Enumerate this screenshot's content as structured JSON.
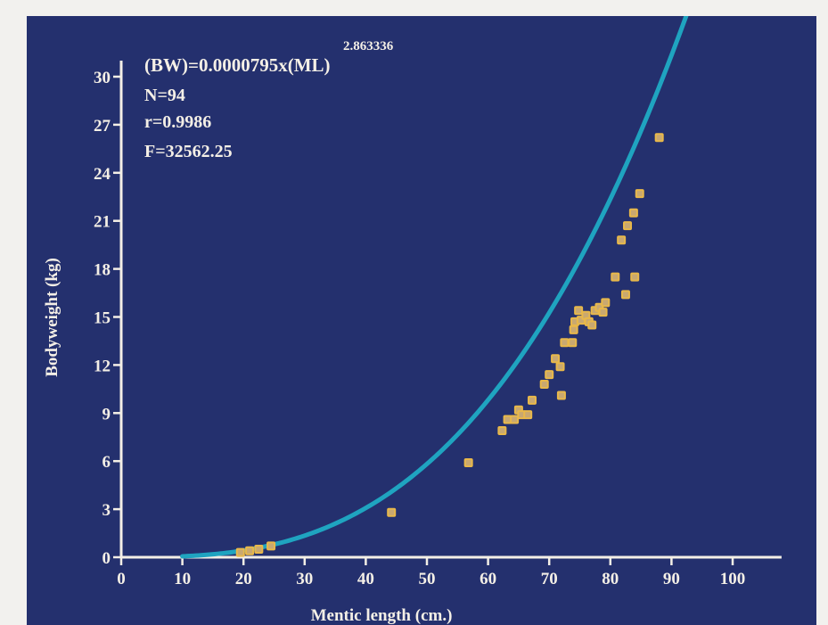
{
  "colors": {
    "page_background": "#f2f1ee",
    "plot_background": "#24306e",
    "axis": "#f4efe6",
    "fit_curve": "#1fa4c0",
    "points_stroke": "#e8b84a",
    "points_fill": "#c9a870"
  },
  "annotations": {
    "equation": "(BW)=0.0000795x(ML)",
    "exponent": "2.863336",
    "n": "N=94",
    "r": "r=0.9986",
    "f": "F=32562.25"
  },
  "chart_data": {
    "type": "scatter",
    "xlabel": "Mentic length (cm.)",
    "ylabel": "Bodyweight (kg)",
    "xlim": [
      0,
      108
    ],
    "ylim": [
      0,
      31
    ],
    "x_ticks": [
      0,
      10,
      20,
      30,
      40,
      50,
      60,
      70,
      80,
      90,
      100
    ],
    "y_ticks": [
      0,
      3,
      6,
      9,
      12,
      15,
      18,
      21,
      24,
      27,
      30
    ],
    "grid": false,
    "fit": {
      "type": "power",
      "a": 7.95e-05,
      "b": 2.863336,
      "x_range": [
        10,
        98
      ]
    },
    "points": [
      {
        "x": 19.5,
        "y": 0.3
      },
      {
        "x": 21,
        "y": 0.4
      },
      {
        "x": 22.5,
        "y": 0.5
      },
      {
        "x": 24.5,
        "y": 0.7
      },
      {
        "x": 44.2,
        "y": 2.8
      },
      {
        "x": 56.8,
        "y": 5.9
      },
      {
        "x": 62.3,
        "y": 7.9
      },
      {
        "x": 63.2,
        "y": 8.6
      },
      {
        "x": 64.3,
        "y": 8.6
      },
      {
        "x": 65,
        "y": 9.2
      },
      {
        "x": 65.5,
        "y": 8.9
      },
      {
        "x": 66.5,
        "y": 8.9
      },
      {
        "x": 67.2,
        "y": 9.8
      },
      {
        "x": 69.2,
        "y": 10.8
      },
      {
        "x": 70,
        "y": 11.4
      },
      {
        "x": 71,
        "y": 12.4
      },
      {
        "x": 71.8,
        "y": 11.9
      },
      {
        "x": 72,
        "y": 10.1
      },
      {
        "x": 72.5,
        "y": 13.4
      },
      {
        "x": 73.8,
        "y": 13.4
      },
      {
        "x": 74,
        "y": 14.2
      },
      {
        "x": 74.2,
        "y": 14.7
      },
      {
        "x": 74.8,
        "y": 15.4
      },
      {
        "x": 75.2,
        "y": 14.8
      },
      {
        "x": 76,
        "y": 15.1
      },
      {
        "x": 76.5,
        "y": 14.7
      },
      {
        "x": 77,
        "y": 14.5
      },
      {
        "x": 77.5,
        "y": 15.4
      },
      {
        "x": 78.2,
        "y": 15.6
      },
      {
        "x": 78.8,
        "y": 15.3
      },
      {
        "x": 79.2,
        "y": 15.9
      },
      {
        "x": 80.8,
        "y": 17.5
      },
      {
        "x": 81.8,
        "y": 19.8
      },
      {
        "x": 82.5,
        "y": 16.4
      },
      {
        "x": 82.8,
        "y": 20.7
      },
      {
        "x": 83.8,
        "y": 21.5
      },
      {
        "x": 84,
        "y": 17.5
      },
      {
        "x": 84.8,
        "y": 22.7
      },
      {
        "x": 88,
        "y": 26.2
      }
    ]
  }
}
